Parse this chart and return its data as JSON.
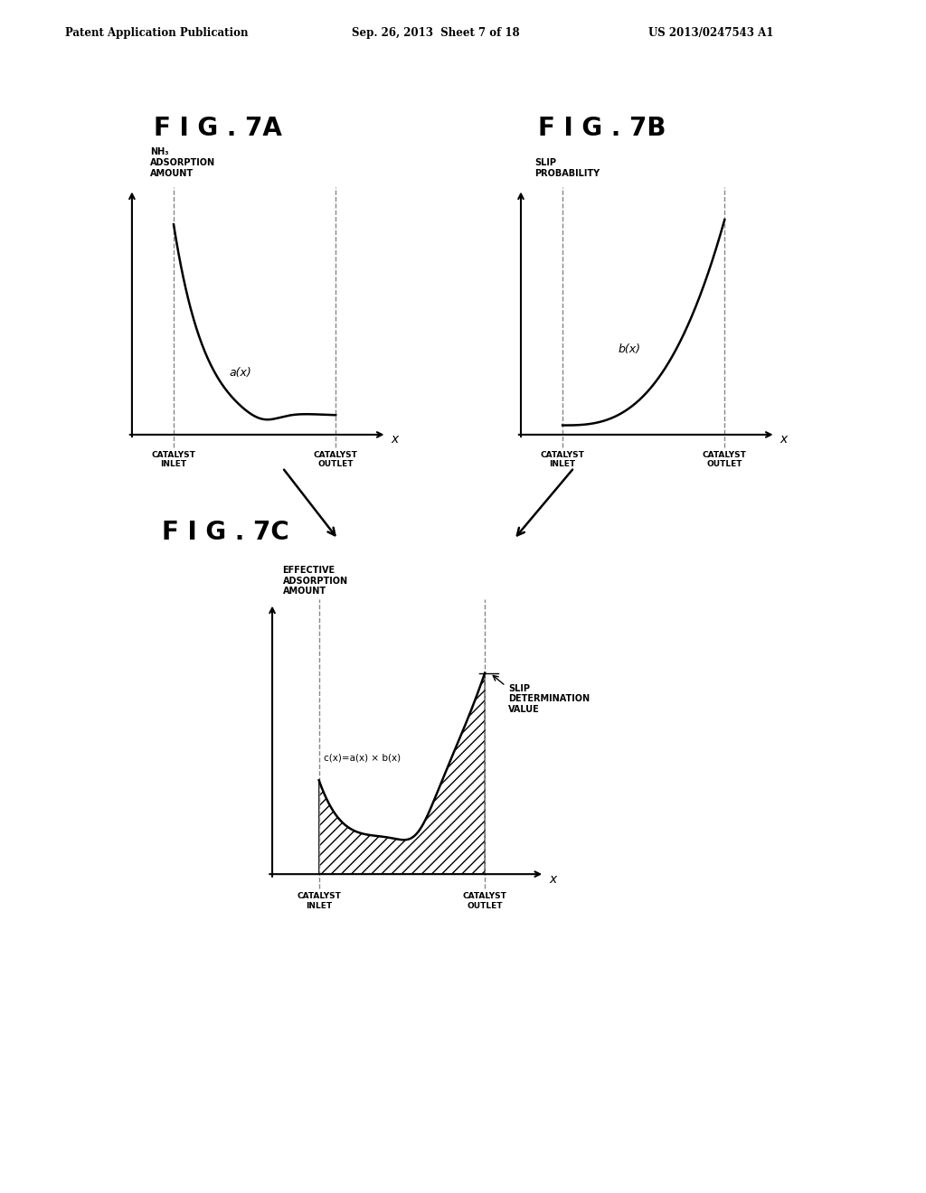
{
  "title_header_left": "Patent Application Publication",
  "title_header_center": "Sep. 26, 2013  Sheet 7 of 18",
  "title_header_right": "US 2013/0247543 A1",
  "fig7a_title": "F I G . 7A",
  "fig7b_title": "F I G . 7B",
  "fig7c_title": "F I G . 7C",
  "fig7a_ylabel": "NH₃\nADSORPTION\nAMOUNT",
  "fig7b_ylabel": "SLIP\nPROBABILITY",
  "fig7c_ylabel": "EFFECTIVE\nADSORPTION\nAMOUNT",
  "xlabel": "x",
  "inlet_label": "CATALYST\nINLET",
  "outlet_label": "CATALYST\nOUTLET",
  "curve_a_label": "a(x)",
  "curve_b_label": "b(x)",
  "curve_c_label": "c(x)=a(x) × b(x)",
  "slip_det_label": "SLIP\nDETERMINATION\nVALUE",
  "bg_color": "#ffffff",
  "line_color": "#000000"
}
